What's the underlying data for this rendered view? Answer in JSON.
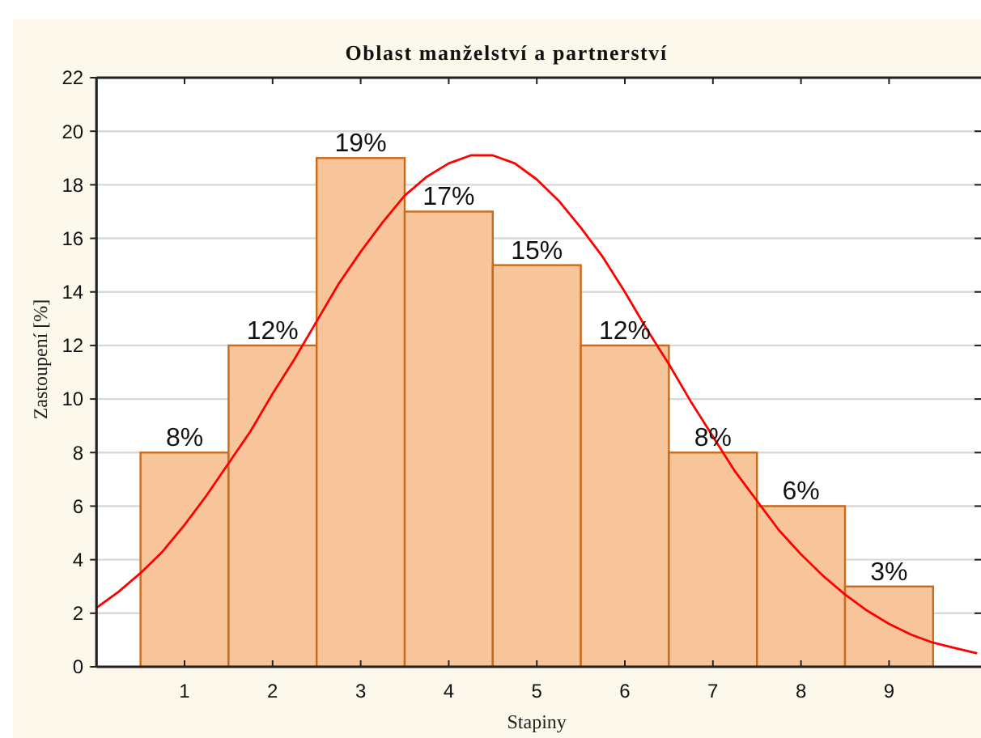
{
  "chart_data": {
    "type": "histogram",
    "title": "Oblast manželství a partnerství",
    "xlabel": "Stapiny",
    "ylabel": "Zastoupení [%]",
    "bins": [
      0.5,
      1.5,
      2.5,
      3.5,
      4.5,
      5.5,
      6.5,
      7.5,
      8.5,
      9.5
    ],
    "series": [
      {
        "color": "#f8c59a",
        "values": [
          8,
          12,
          19,
          17,
          15,
          12,
          8,
          6,
          3
        ],
        "value_labels": [
          "8%",
          "12%",
          "19%",
          "17%",
          "15%",
          "12%",
          "8%",
          "6%",
          "3%"
        ]
      },
      {
        "type": "line",
        "color": "#ff0000",
        "x": [
          0,
          0.25,
          0.5,
          0.75,
          1,
          1.25,
          1.5,
          1.75,
          2,
          2.25,
          2.5,
          2.75,
          3,
          3.25,
          3.5,
          3.75,
          4,
          4.25,
          4.5,
          4.75,
          5,
          5.25,
          5.5,
          5.75,
          6,
          6.25,
          6.5,
          6.75,
          7,
          7.25,
          7.5,
          7.75,
          8,
          8.25,
          8.5,
          8.75,
          9,
          9.25,
          9.5,
          9.75,
          10
        ],
        "values": [
          2.2,
          2.8,
          3.5,
          4.3,
          5.3,
          6.4,
          7.6,
          8.8,
          10.2,
          11.5,
          12.9,
          14.3,
          15.5,
          16.6,
          17.6,
          18.3,
          18.8,
          19.1,
          19.1,
          18.8,
          18.2,
          17.4,
          16.4,
          15.3,
          14.0,
          12.6,
          11.3,
          9.9,
          8.6,
          7.3,
          6.2,
          5.1,
          4.2,
          3.4,
          2.7,
          2.1,
          1.6,
          1.2,
          0.9,
          0.7,
          0.5
        ]
      }
    ],
    "xlim": [
      0,
      10
    ],
    "xticks": [
      1,
      2,
      3,
      4,
      5,
      6,
      7,
      8,
      9
    ],
    "ylim": [
      0,
      22
    ],
    "yticks": [
      0,
      2,
      4,
      6,
      8,
      10,
      12,
      14,
      16,
      18,
      20,
      22
    ],
    "grid": "y"
  }
}
